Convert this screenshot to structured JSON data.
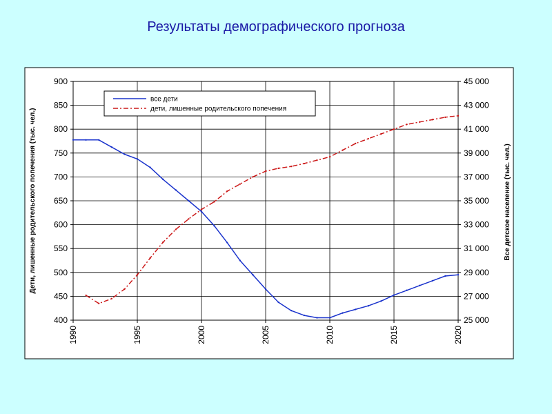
{
  "slide": {
    "title": "Результаты демографического прогноза"
  },
  "chart_data": {
    "type": "line",
    "xlabel": "",
    "ylabel_left": "Дети, лишенные родительского попечения (тыс. чел.)",
    "ylabel_right": "Все детское население (тыс. чел.)",
    "xlim": [
      1990,
      2020
    ],
    "ylim_left": [
      400,
      900
    ],
    "ylim_right": [
      25000,
      45000
    ],
    "x_ticks": [
      "1990",
      "1995",
      "2000",
      "2005",
      "2010",
      "2015",
      "2020"
    ],
    "y_ticks_left": [
      "900",
      "850",
      "800",
      "750",
      "700",
      "650",
      "600",
      "550",
      "500",
      "450",
      "400"
    ],
    "y_ticks_right": [
      "45 000",
      "43 000",
      "41 000",
      "39 000",
      "37 000",
      "35 000",
      "33 000",
      "31 000",
      "29 000",
      "27 000",
      "25 000"
    ],
    "grid": true,
    "legend_position": "top-center",
    "series": [
      {
        "name": "все дети",
        "axis": "right",
        "color": "#1a33cc",
        "style": "solid",
        "x": [
          1990,
          1991,
          1992,
          1993,
          1994,
          1995,
          1996,
          1997,
          1998,
          1999,
          2000,
          2001,
          2002,
          2003,
          2004,
          2005,
          2006,
          2007,
          2008,
          2009,
          2010,
          2011,
          2012,
          2013,
          2014,
          2015,
          2016,
          2017,
          2018,
          2019,
          2020
        ],
        "values": [
          40100,
          40100,
          40100,
          39500,
          38900,
          38500,
          37800,
          36800,
          35900,
          35000,
          34100,
          32900,
          31500,
          30000,
          28800,
          27600,
          26500,
          25800,
          25400,
          25200,
          25200,
          25600,
          25900,
          26200,
          26600,
          27100,
          27500,
          27900,
          28300,
          28700,
          28800
        ]
      },
      {
        "name": "дети, лишенные родительского попечения",
        "axis": "left",
        "color": "#cc1a1a",
        "style": "dash-dot",
        "x": [
          1991,
          1992,
          1993,
          1994,
          1995,
          1996,
          1997,
          1998,
          1999,
          2000,
          2001,
          2002,
          2003,
          2004,
          2005,
          2006,
          2007,
          2008,
          2009,
          2010,
          2011,
          2012,
          2013,
          2014,
          2015,
          2016,
          2017,
          2018,
          2019,
          2020
        ],
        "values": [
          452,
          435,
          445,
          465,
          495,
          530,
          563,
          590,
          612,
          632,
          648,
          670,
          685,
          700,
          712,
          718,
          722,
          728,
          735,
          742,
          756,
          770,
          780,
          790,
          800,
          810,
          815,
          820,
          825,
          828
        ]
      }
    ]
  }
}
